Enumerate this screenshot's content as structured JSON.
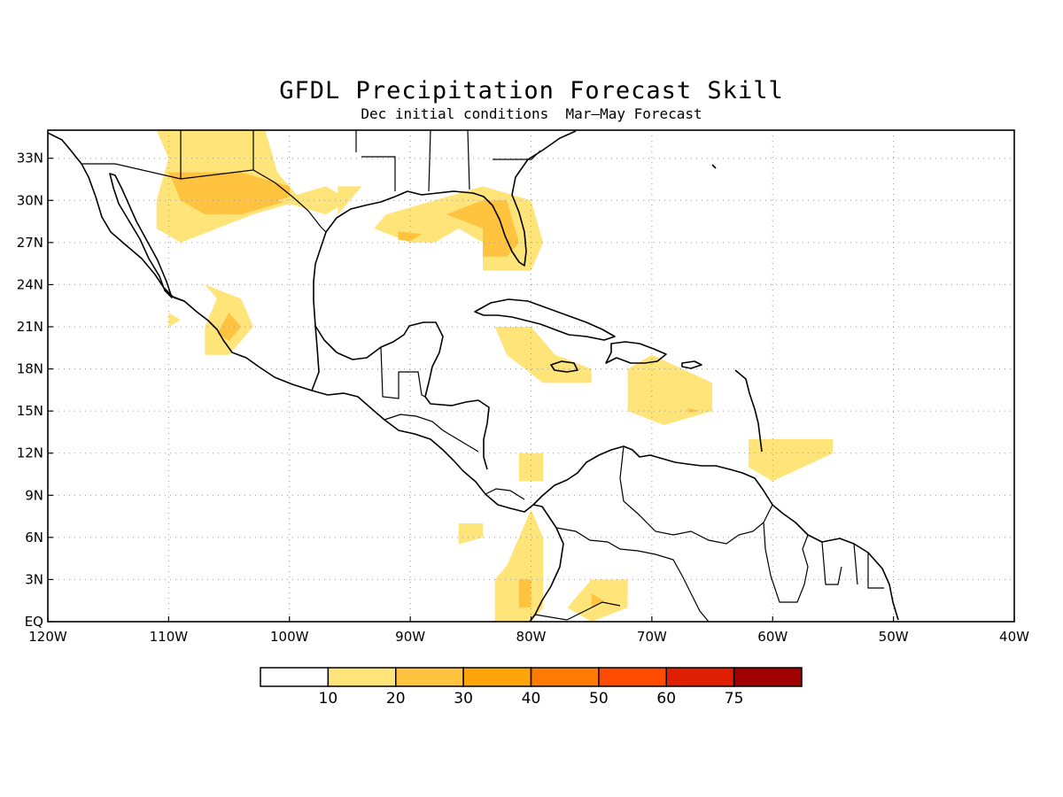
{
  "title": "GFDL Precipitation Forecast Skill",
  "subtitle": "Dec initial conditions  Mar—May Forecast",
  "map": {
    "lon_range": [
      -120,
      -40
    ],
    "lat_range": [
      0,
      35
    ],
    "grid": true,
    "x_ticks": [
      {
        "value": -120,
        "label": "120W"
      },
      {
        "value": -110,
        "label": "110W"
      },
      {
        "value": -100,
        "label": "100W"
      },
      {
        "value": -90,
        "label": "90W"
      },
      {
        "value": -80,
        "label": "80W"
      },
      {
        "value": -70,
        "label": "70W"
      },
      {
        "value": -60,
        "label": "60W"
      },
      {
        "value": -50,
        "label": "50W"
      },
      {
        "value": -40,
        "label": "40W"
      }
    ],
    "y_ticks": [
      {
        "value": 0,
        "label": "EQ"
      },
      {
        "value": 3,
        "label": "3N"
      },
      {
        "value": 6,
        "label": "6N"
      },
      {
        "value": 9,
        "label": "9N"
      },
      {
        "value": 12,
        "label": "12N"
      },
      {
        "value": 15,
        "label": "15N"
      },
      {
        "value": 18,
        "label": "18N"
      },
      {
        "value": 21,
        "label": "21N"
      },
      {
        "value": 24,
        "label": "24N"
      },
      {
        "value": 27,
        "label": "27N"
      },
      {
        "value": 30,
        "label": "30N"
      },
      {
        "value": 33,
        "label": "33N"
      }
    ]
  },
  "colorbar": {
    "colors": [
      "#ffffff",
      "#ffe47a",
      "#ffc340",
      "#ffa50a",
      "#ff7a00",
      "#ff4b00",
      "#e01e00",
      "#a10000"
    ],
    "labels": [
      "10",
      "20",
      "30",
      "40",
      "50",
      "60",
      "75"
    ]
  },
  "chart_data": {
    "type": "heatmap",
    "variable": "precipitation forecast skill",
    "levels": [
      10,
      20,
      30,
      40,
      50,
      60,
      75
    ],
    "regions": [
      {
        "level": 10,
        "polygon": [
          [
            -111,
            35
          ],
          [
            -102,
            35
          ],
          [
            -101,
            32
          ],
          [
            -99,
            30
          ],
          [
            -103,
            29
          ],
          [
            -106,
            28
          ],
          [
            -109,
            27
          ],
          [
            -111,
            28
          ],
          [
            -111,
            30
          ],
          [
            -110,
            33
          ]
        ]
      },
      {
        "level": 20,
        "polygon": [
          [
            -110,
            32
          ],
          [
            -104,
            32
          ],
          [
            -100,
            31
          ],
          [
            -100,
            30
          ],
          [
            -104,
            29
          ],
          [
            -107,
            29
          ],
          [
            -109,
            30
          ]
        ]
      },
      {
        "level": 10,
        "polygon": [
          [
            -101,
            30
          ],
          [
            -97,
            29
          ],
          [
            -95,
            30
          ],
          [
            -97,
            31
          ]
        ]
      },
      {
        "level": 10,
        "polygon": [
          [
            -96,
            29
          ],
          [
            -95,
            30
          ],
          [
            -94,
            31
          ],
          [
            -96,
            31
          ]
        ]
      },
      {
        "level": 10,
        "polygon": [
          [
            -93,
            28
          ],
          [
            -90,
            27
          ],
          [
            -88,
            27
          ],
          [
            -86,
            28
          ],
          [
            -84,
            27
          ],
          [
            -84,
            25
          ],
          [
            -80,
            25
          ],
          [
            -79,
            27
          ],
          [
            -80,
            30
          ],
          [
            -84,
            31
          ],
          [
            -88,
            30
          ],
          [
            -92,
            29
          ]
        ]
      },
      {
        "level": 20,
        "polygon": [
          [
            -87,
            29
          ],
          [
            -84,
            30
          ],
          [
            -82,
            30
          ],
          [
            -81,
            27
          ],
          [
            -82,
            26
          ],
          [
            -84,
            26
          ],
          [
            -84,
            28
          ]
        ]
      },
      {
        "level": 20,
        "polygon": [
          [
            -91,
            27.8
          ],
          [
            -89,
            27.6
          ],
          [
            -90,
            27.1
          ],
          [
            -91,
            27.2
          ]
        ]
      },
      {
        "level": 10,
        "polygon": [
          [
            -107,
            24
          ],
          [
            -104,
            23
          ],
          [
            -103,
            21
          ],
          [
            -105,
            19
          ],
          [
            -107,
            19
          ],
          [
            -107,
            21
          ],
          [
            -106,
            23
          ]
        ]
      },
      {
        "level": 20,
        "polygon": [
          [
            -105,
            22
          ],
          [
            -104,
            21
          ],
          [
            -105,
            20
          ],
          [
            -106,
            20.5
          ]
        ]
      },
      {
        "level": 10,
        "polygon": [
          [
            -110,
            22
          ],
          [
            -109,
            21.5
          ],
          [
            -110,
            21
          ]
        ]
      },
      {
        "level": 10,
        "polygon": [
          [
            -83,
            21
          ],
          [
            -80,
            21
          ],
          [
            -78,
            19
          ],
          [
            -75,
            18
          ],
          [
            -75,
            17
          ],
          [
            -79,
            17
          ],
          [
            -82,
            19
          ]
        ]
      },
      {
        "level": 10,
        "polygon": [
          [
            -70,
            19
          ],
          [
            -65,
            17
          ],
          [
            -65,
            15
          ],
          [
            -69,
            14
          ],
          [
            -72,
            15
          ],
          [
            -72,
            18
          ]
        ]
      },
      {
        "level": 20,
        "polygon": [
          [
            -67,
            15.2
          ],
          [
            -66,
            15
          ],
          [
            -67,
            14.9
          ]
        ]
      },
      {
        "level": 10,
        "polygon": [
          [
            -62,
            13
          ],
          [
            -55,
            13
          ],
          [
            -55,
            12
          ],
          [
            -60,
            10
          ],
          [
            -62,
            11
          ]
        ]
      },
      {
        "level": 10,
        "polygon": [
          [
            -81,
            12
          ],
          [
            -79,
            12
          ],
          [
            -79,
            10
          ],
          [
            -81,
            10
          ]
        ]
      },
      {
        "level": 10,
        "polygon": [
          [
            -86,
            7
          ],
          [
            -84,
            7
          ],
          [
            -84,
            6
          ],
          [
            -86,
            5.5
          ]
        ]
      },
      {
        "level": 10,
        "polygon": [
          [
            -80,
            8
          ],
          [
            -79,
            6
          ],
          [
            -79,
            1
          ],
          [
            -80,
            0
          ],
          [
            -83,
            0
          ],
          [
            -83,
            3
          ],
          [
            -82,
            4
          ]
        ]
      },
      {
        "level": 20,
        "polygon": [
          [
            -81,
            3
          ],
          [
            -80,
            3
          ],
          [
            -80,
            1
          ],
          [
            -81,
            1
          ]
        ]
      },
      {
        "level": 10,
        "polygon": [
          [
            -75,
            3
          ],
          [
            -72,
            3
          ],
          [
            -72,
            1
          ],
          [
            -75,
            0
          ],
          [
            -77,
            1
          ]
        ]
      },
      {
        "level": 20,
        "polygon": [
          [
            -75,
            2
          ],
          [
            -74,
            1.5
          ],
          [
            -75,
            1
          ]
        ]
      }
    ]
  }
}
